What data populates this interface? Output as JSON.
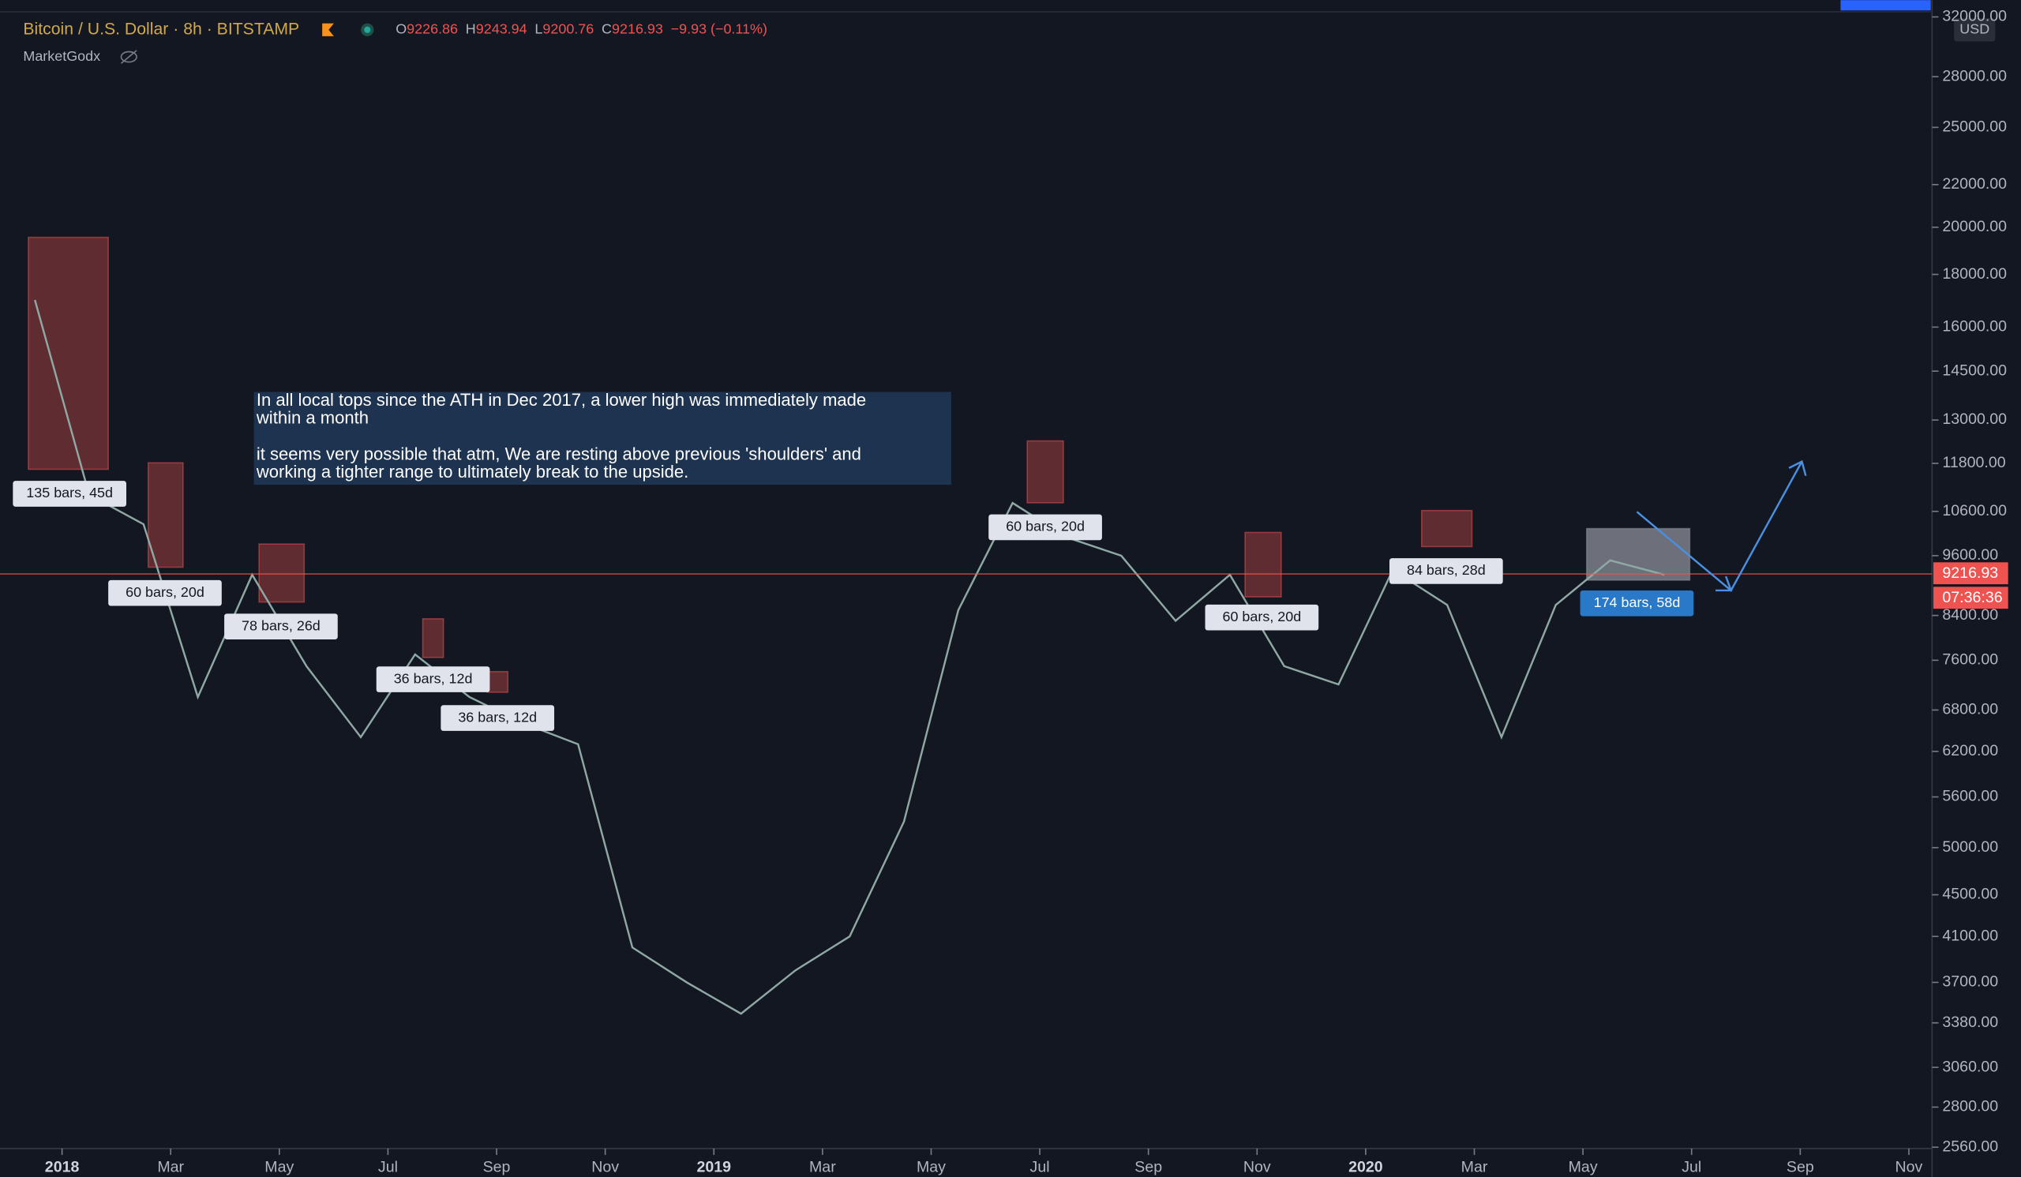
{
  "chart_data": {
    "type": "line",
    "title": "Bitcoin / U.S. Dollar",
    "interval": "8h",
    "exchange": "BITSTAMP",
    "ohlc": [
      {
        "label": "O",
        "value": 9226.86
      },
      {
        "label": "H",
        "value": 9243.94
      },
      {
        "label": "L",
        "value": 9200.76
      },
      {
        "label": "C",
        "value": 9216.93
      }
    ],
    "change": "−9.93 (−0.11%)",
    "indicator": "MarketGodx",
    "currency": "USD",
    "last_price": 9216.93,
    "countdown": "07:36:36",
    "note": [
      "In all local tops since the ATH in Dec 2017, a lower high was immediately made",
      "within a month",
      "it seems very possible that atm, We are resting above previous 'shoulders' and",
      "working a tighter range to ultimately break to the upside."
    ],
    "annotations": [
      "135 bars, 45d",
      "60 bars, 20d",
      "78 bars, 26d",
      "36 bars, 12d",
      "36 bars, 12d",
      "60 bars, 20d",
      "60 bars, 20d",
      "84 bars, 28d",
      "174 bars, 58d"
    ],
    "x": [
      "2017-12",
      "2018-01",
      "2018-02",
      "2018-03",
      "2018-04",
      "2018-05",
      "2018-06",
      "2018-07",
      "2018-08",
      "2018-09",
      "2018-10",
      "2018-11",
      "2018-12",
      "2019-01",
      "2019-02",
      "2019-03",
      "2019-04",
      "2019-05",
      "2019-06",
      "2019-07",
      "2019-08",
      "2019-09",
      "2019-10",
      "2019-11",
      "2019-12",
      "2020-01",
      "2020-02",
      "2020-03",
      "2020-04",
      "2020-05",
      "2020-06"
    ],
    "series": [
      {
        "name": "BTCUSD",
        "color": "#8fa8a3",
        "values": [
          17000,
          11000,
          10300,
          7000,
          9200,
          7500,
          6400,
          7700,
          7000,
          6600,
          6300,
          4000,
          3700,
          3450,
          3800,
          4100,
          5300,
          8500,
          10800,
          10000,
          9600,
          8300,
          9200,
          7500,
          7200,
          9300,
          8600,
          6400,
          8600,
          9500,
          9200
        ]
      }
    ],
    "xlim": [
      "2017-12",
      "2020-11"
    ],
    "xticks": [
      {
        "value": "2018-01",
        "label": "2018"
      },
      {
        "value": "2018-03",
        "label": "Mar"
      },
      {
        "value": "2018-05",
        "label": "May"
      },
      {
        "value": "2018-07",
        "label": "Jul"
      },
      {
        "value": "2018-09",
        "label": "Sep"
      },
      {
        "value": "2018-11",
        "label": "Nov"
      },
      {
        "value": "2019-01",
        "label": "2019"
      },
      {
        "value": "2019-03",
        "label": "Mar"
      },
      {
        "value": "2019-05",
        "label": "May"
      },
      {
        "value": "2019-07",
        "label": "Jul"
      },
      {
        "value": "2019-09",
        "label": "Sep"
      },
      {
        "value": "2019-11",
        "label": "Nov"
      },
      {
        "value": "2020-01",
        "label": "2020"
      },
      {
        "value": "2020-03",
        "label": "Mar"
      },
      {
        "value": "2020-05",
        "label": "May"
      },
      {
        "value": "2020-07",
        "label": "Jul"
      },
      {
        "value": "2020-09",
        "label": "Sep"
      },
      {
        "value": "2020-11",
        "label": "Nov"
      }
    ],
    "ylim": [
      2560,
      32000
    ],
    "log_scale": true,
    "yticks": [
      {
        "value": 2560,
        "label": "2560.00"
      },
      {
        "value": 2800,
        "label": "2800.00"
      },
      {
        "value": 3060,
        "label": "3060.00"
      },
      {
        "value": 3380,
        "label": "3380.00"
      },
      {
        "value": 3700,
        "label": "3700.00"
      },
      {
        "value": 4100,
        "label": "4100.00"
      },
      {
        "value": 4500,
        "label": "4500.00"
      },
      {
        "value": 5000,
        "label": "5000.00"
      },
      {
        "value": 5600,
        "label": "5600.00"
      },
      {
        "value": 6200,
        "label": "6200.00"
      },
      {
        "value": 6800,
        "label": "6800.00"
      },
      {
        "value": 7600,
        "label": "7600.00"
      },
      {
        "value": 8400,
        "label": "8400.00"
      },
      {
        "value": 9600,
        "label": "9600.00"
      },
      {
        "value": 10600,
        "label": "10600.00"
      },
      {
        "value": 11800,
        "label": "11800.00"
      },
      {
        "value": 13000,
        "label": "13000.00"
      },
      {
        "value": 14500,
        "label": "14500.00"
      },
      {
        "value": 16000,
        "label": "16000.00"
      },
      {
        "value": 18000,
        "label": "18000.00"
      },
      {
        "value": 20000,
        "label": "20000.00"
      },
      {
        "value": 22000,
        "label": "22000.00"
      },
      {
        "value": 25000,
        "label": "25000.00"
      },
      {
        "value": 28000,
        "label": "28000.00"
      },
      {
        "value": 32000,
        "label": "32000.00"
      }
    ]
  }
}
